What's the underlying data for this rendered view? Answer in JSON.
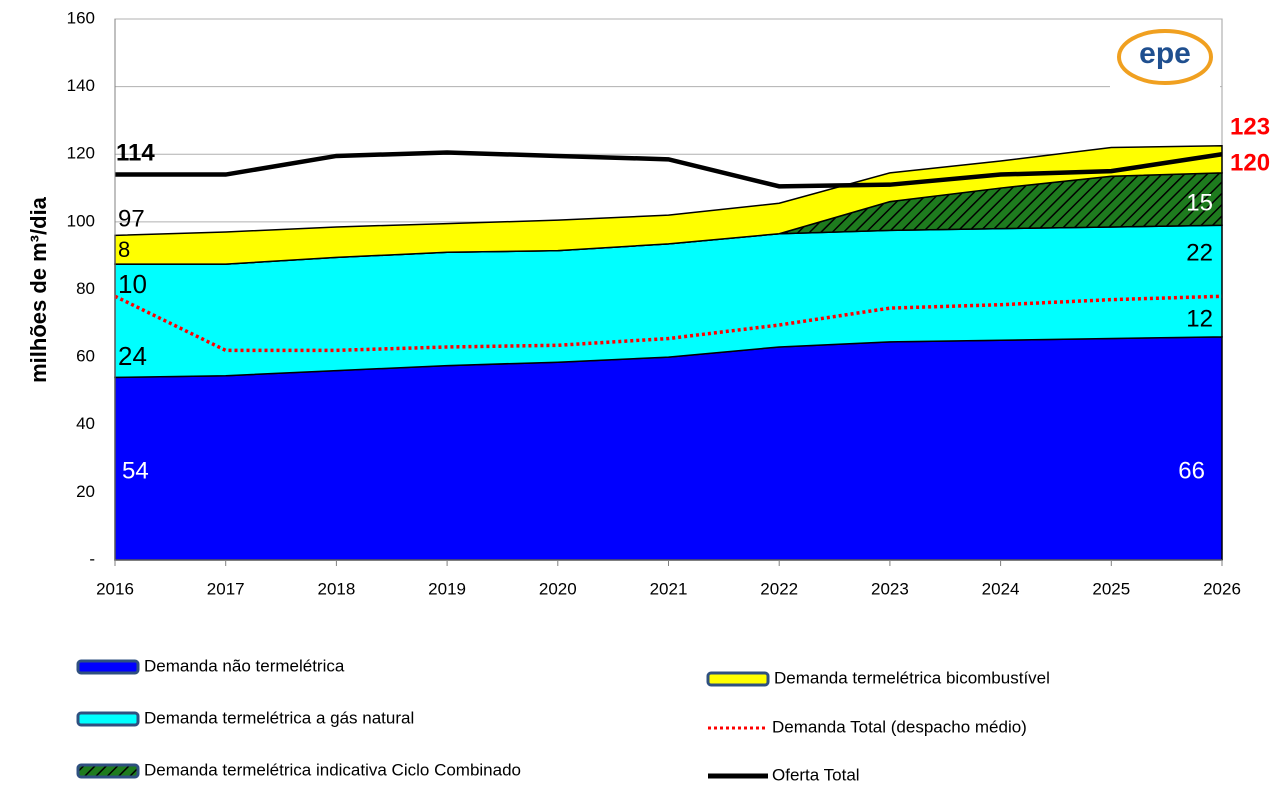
{
  "chart_data": {
    "type": "stacked_area",
    "logo": "epe",
    "y_label": "milhões de m³/dia",
    "categories": [
      "2016",
      "2017",
      "2018",
      "2019",
      "2020",
      "2021",
      "2022",
      "2023",
      "2024",
      "2025",
      "2026"
    ],
    "ylim": [
      0,
      160
    ],
    "yticks": [
      {
        "value": 0,
        "label": "-"
      },
      20,
      40,
      60,
      80,
      100,
      120,
      140,
      160
    ],
    "grid": true,
    "series": [
      {
        "name": "Demanda não termelétrica",
        "color": "#0000ff",
        "values": [
          54,
          54.5,
          56,
          57.5,
          58.5,
          60,
          63,
          64.5,
          65,
          65.5,
          66
        ]
      },
      {
        "name": "Demanda termelétrica a gás natural",
        "color": "#00ffff",
        "values": [
          33.5,
          33,
          33.5,
          33.5,
          33,
          33.5,
          33.5,
          33,
          33,
          33,
          33
        ]
      },
      {
        "name": "Demanda termelétrica indicativa Ciclo Combinado",
        "color": "#1e7b1e",
        "pattern": "hatch",
        "values": [
          0,
          0,
          0,
          0,
          0,
          0,
          0,
          8.5,
          12,
          15,
          15.5
        ]
      },
      {
        "name": "Demanda termelétrica bicombustível",
        "color": "#ffff00",
        "values": [
          8.5,
          9.5,
          9,
          8.5,
          9,
          8.5,
          9,
          8.5,
          8,
          8.5,
          8
        ]
      }
    ],
    "lines": [
      {
        "name": "Demanda Total (despacho médio)",
        "color": "#ff0000",
        "style": "dotted",
        "values": [
          78,
          62,
          62,
          63,
          63.5,
          65.5,
          69.5,
          74.5,
          75.5,
          77,
          78
        ]
      },
      {
        "name": "Oferta Total",
        "color": "#000000",
        "style": "solid",
        "values": [
          114,
          114,
          119.5,
          120.5,
          119.5,
          118.5,
          110.5,
          111,
          114,
          115,
          120
        ]
      }
    ],
    "annotations": [
      "114",
      "97",
      "8",
      "10",
      "24",
      "54",
      "123",
      "120",
      "15",
      "22",
      "12",
      "66"
    ]
  }
}
